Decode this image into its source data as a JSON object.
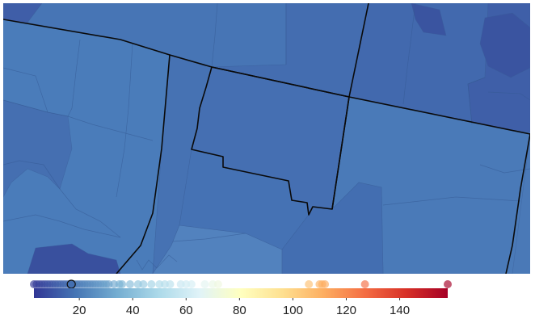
{
  "map": {
    "background_color": "#4a79b7",
    "regions": [
      {
        "id": "nw-plain",
        "value": 26,
        "color": "#4a7cba"
      },
      {
        "id": "nw-top-left",
        "value": 10,
        "color": "#3f5ea8"
      },
      {
        "id": "north-top",
        "value": 22,
        "color": "#4775b5"
      },
      {
        "id": "north-mid",
        "value": 18,
        "color": "#446db0"
      },
      {
        "id": "ne-strip",
        "value": 16,
        "color": "#4269ae"
      },
      {
        "id": "far-ne-dark",
        "value": 8,
        "color": "#3a54a0"
      },
      {
        "id": "far-ne-mid",
        "value": 12,
        "color": "#3f5fa8"
      },
      {
        "id": "center-outlined",
        "value": 19,
        "color": "#456fb2"
      },
      {
        "id": "central-strip",
        "value": 21,
        "color": "#4672b3"
      },
      {
        "id": "east-large",
        "value": 25,
        "color": "#4a7ab8"
      },
      {
        "id": "west-broken",
        "value": 19,
        "color": "#456fb1"
      },
      {
        "id": "sw-dark",
        "value": 6,
        "color": "#39509e"
      },
      {
        "id": "south-light",
        "value": 30,
        "color": "#5282be"
      },
      {
        "id": "south-center",
        "value": 20,
        "color": "#4572b4"
      },
      {
        "id": "se-right",
        "value": 18,
        "color": "#436eb1"
      }
    ]
  },
  "legend": {
    "colormap": [
      "#313695",
      "#4575b4",
      "#74add1",
      "#abd9e9",
      "#e0f3f8",
      "#ffffbf",
      "#fee090",
      "#fdae61",
      "#f46d43",
      "#d73027",
      "#a50026"
    ],
    "min": 3,
    "max": 158,
    "tick_values": [
      20,
      40,
      60,
      80,
      100,
      120,
      140
    ],
    "tick_labels": [
      "20",
      "40",
      "60",
      "80",
      "100",
      "120",
      "140"
    ],
    "highlighted_value": 17,
    "sample_values": [
      3,
      4,
      5,
      6,
      7,
      8,
      9,
      10,
      11,
      12,
      13,
      14,
      15,
      16,
      17,
      18,
      19,
      20,
      21,
      22,
      23,
      24,
      25,
      26,
      27,
      28,
      29,
      30,
      31,
      33,
      35,
      36,
      39,
      42,
      44,
      47,
      50,
      52,
      54,
      58,
      60,
      62,
      67,
      70,
      72,
      106,
      110,
      111,
      112,
      127,
      158
    ]
  }
}
